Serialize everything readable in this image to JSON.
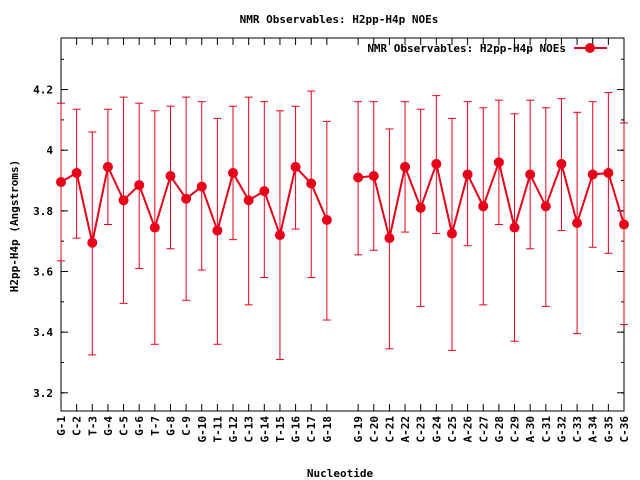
{
  "chart_data": {
    "type": "line",
    "title": "NMR Observables: H2pp-H4p NOEs",
    "xlabel": "Nucleotide",
    "ylabel": "H2pp-H4p (Angstroms)",
    "ylim": [
      3.14,
      4.37
    ],
    "yticks": [
      3.2,
      3.4,
      3.6,
      3.8,
      4.0,
      4.2
    ],
    "ytick_labels": [
      "3.2",
      "3.4",
      "3.6",
      "3.8",
      "4",
      "4.2"
    ],
    "grid": false,
    "legend_position": "top-right",
    "series": [
      {
        "name": "NMR Observables: H2pp-H4p NOEs",
        "color": "#e8001a",
        "error_bars": true,
        "segments": [
          {
            "labels": [
              "G-1",
              "C-2",
              "T-3",
              "G-4",
              "C-5",
              "G-6",
              "T-7",
              "G-8",
              "C-9",
              "G-10",
              "T-11",
              "G-12",
              "C-13",
              "G-14",
              "T-15",
              "G-16",
              "C-17",
              "G-18"
            ],
            "values": [
              3.895,
              3.925,
              3.695,
              3.945,
              3.835,
              3.885,
              3.745,
              3.915,
              3.84,
              3.88,
              3.735,
              3.925,
              3.835,
              3.865,
              3.72,
              3.945,
              3.89,
              3.77
            ],
            "upper": [
              4.155,
              4.135,
              4.06,
              4.135,
              4.175,
              4.155,
              4.13,
              4.145,
              4.175,
              4.16,
              4.105,
              4.145,
              4.175,
              4.16,
              4.13,
              4.145,
              4.195,
              4.095
            ],
            "lower": [
              3.635,
              3.71,
              3.325,
              3.755,
              3.495,
              3.61,
              3.36,
              3.675,
              3.505,
              3.605,
              3.36,
              3.705,
              3.49,
              3.58,
              3.31,
              3.74,
              3.58,
              3.44
            ]
          },
          {
            "labels": [
              "G-19",
              "C-20",
              "C-21",
              "A-22",
              "C-23",
              "G-24",
              "C-25",
              "A-26",
              "C-27",
              "G-28",
              "C-29",
              "A-30",
              "C-31",
              "G-32",
              "C-33",
              "A-34",
              "G-35",
              "C-36"
            ],
            "values": [
              3.91,
              3.915,
              3.71,
              3.945,
              3.81,
              3.955,
              3.725,
              3.92,
              3.815,
              3.96,
              3.745,
              3.92,
              3.815,
              3.955,
              3.76,
              3.92,
              3.925,
              3.755
            ],
            "upper": [
              4.16,
              4.16,
              4.07,
              4.16,
              4.135,
              4.18,
              4.105,
              4.16,
              4.14,
              4.165,
              4.12,
              4.165,
              4.14,
              4.17,
              4.125,
              4.16,
              4.19,
              4.09
            ],
            "lower": [
              3.655,
              3.67,
              3.345,
              3.73,
              3.485,
              3.725,
              3.34,
              3.685,
              3.49,
              3.755,
              3.37,
              3.675,
              3.485,
              3.735,
              3.395,
              3.68,
              3.66,
              3.425
            ]
          }
        ]
      }
    ]
  }
}
